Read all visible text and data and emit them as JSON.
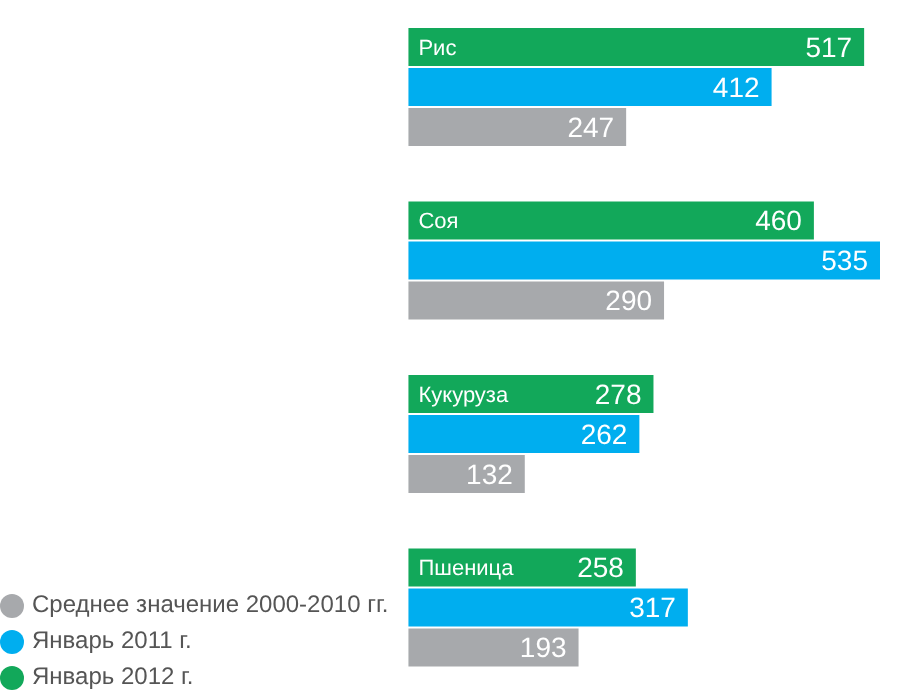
{
  "chart_data": {
    "type": "bar",
    "orientation": "horizontal",
    "categories": [
      "Рис",
      "Соя",
      "Кукуруза",
      "Пшеница"
    ],
    "series": [
      {
        "name": "Январь 2012 г.",
        "color": "#12a85a",
        "values": [
          517,
          460,
          278,
          258
        ]
      },
      {
        "name": "Январь 2011 г.",
        "color": "#00aeef",
        "values": [
          412,
          535,
          262,
          317
        ]
      },
      {
        "name": "Среднее значение 2000-2010 гг.",
        "color": "#a7a9ac",
        "values": [
          247,
          290,
          132,
          193
        ]
      }
    ],
    "data_labels": true,
    "legend": "bottom left",
    "grid": false
  }
}
